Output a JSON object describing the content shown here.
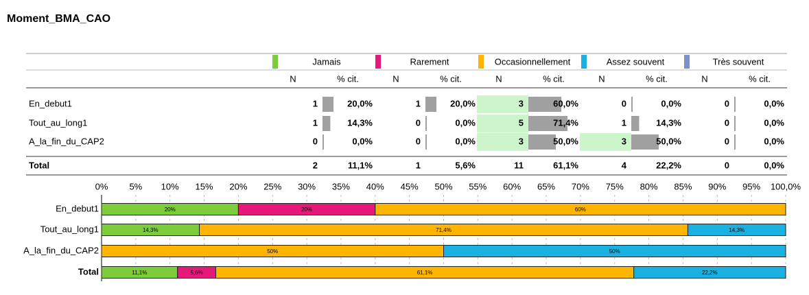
{
  "title": "Moment_BMA_CAO",
  "table": {
    "subheaders": [
      "N",
      "% cit."
    ],
    "n": [
      [
        1,
        1,
        3,
        0,
        0
      ],
      [
        1,
        0,
        5,
        1,
        0
      ],
      [
        0,
        0,
        3,
        3,
        0
      ],
      [
        2,
        1,
        11,
        4,
        0
      ]
    ],
    "pct_labels": [
      [
        "20,0%",
        "20,0%",
        "60,0%",
        "0,0%",
        "0,0%"
      ],
      [
        "14,3%",
        "0,0%",
        "71,4%",
        "14,3%",
        "0,0%"
      ],
      [
        "0,0%",
        "0,0%",
        "50,0%",
        "50,0%",
        "0,0%"
      ],
      [
        "11,1%",
        "5,6%",
        "61,1%",
        "22,2%",
        "0,0%"
      ]
    ],
    "highlight": [
      [
        false,
        false,
        true,
        false,
        false
      ],
      [
        false,
        false,
        true,
        false,
        false
      ],
      [
        false,
        false,
        true,
        true,
        false
      ],
      [
        false,
        false,
        false,
        false,
        false
      ]
    ]
  },
  "chart_data": {
    "type": "bar",
    "orientation": "horizontal",
    "stacked": true,
    "categories": [
      "En_debut1",
      "Tout_au_long1",
      "A_la_fin_du_CAP2",
      "Total"
    ],
    "series": [
      {
        "name": "Jamais",
        "color": "#7ccc3c",
        "values": [
          20,
          14.3,
          0,
          11.1
        ],
        "value_labels": [
          "20%",
          "14,3%",
          null,
          "11,1%"
        ]
      },
      {
        "name": "Rarement",
        "color": "#e6197a",
        "values": [
          20,
          0,
          0,
          5.6
        ],
        "value_labels": [
          "20%",
          null,
          null,
          "5,6%"
        ]
      },
      {
        "name": "Occasionnellement",
        "color": "#ffb400",
        "values": [
          60,
          71.4,
          50,
          61.1
        ],
        "value_labels": [
          "60%",
          "71,4%",
          "50%",
          "61,1%"
        ]
      },
      {
        "name": "Assez souvent",
        "color": "#1ab0e0",
        "values": [
          0,
          14.3,
          50,
          22.2
        ],
        "value_labels": [
          null,
          "14,3%",
          "50%",
          "22,2%"
        ]
      },
      {
        "name": "Très souvent",
        "color": "#7f8fc8",
        "values": [
          0,
          0,
          0,
          0
        ],
        "value_labels": [
          null,
          null,
          null,
          null
        ]
      }
    ],
    "xlim": [
      0,
      100
    ],
    "xticks": [
      {
        "value": 0,
        "label": "0%"
      },
      {
        "value": 5,
        "label": "5%"
      },
      {
        "value": 10,
        "label": "10%"
      },
      {
        "value": 15,
        "label": "15%"
      },
      {
        "value": 20,
        "label": "20%"
      },
      {
        "value": 25,
        "label": "25%"
      },
      {
        "value": 30,
        "label": "30%"
      },
      {
        "value": 35,
        "label": "35%"
      },
      {
        "value": 40,
        "label": "40%"
      },
      {
        "value": 45,
        "label": "45%"
      },
      {
        "value": 50,
        "label": "50%"
      },
      {
        "value": 55,
        "label": "55%"
      },
      {
        "value": 60,
        "label": "60%"
      },
      {
        "value": 65,
        "label": "65%"
      },
      {
        "value": 70,
        "label": "70%"
      },
      {
        "value": 75,
        "label": "75%"
      },
      {
        "value": 80,
        "label": "80%"
      },
      {
        "value": 85,
        "label": "85%"
      },
      {
        "value": 90,
        "label": "90%"
      },
      {
        "value": 95,
        "label": "95%"
      },
      {
        "value": 100,
        "label": "100,0%"
      }
    ],
    "grid": true
  }
}
